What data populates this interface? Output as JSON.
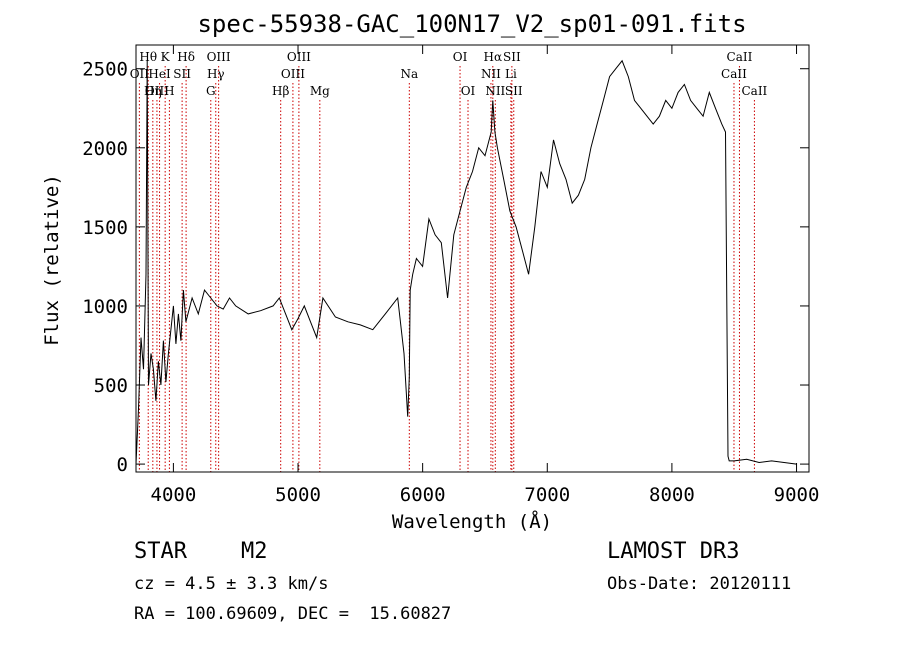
{
  "chart_data": {
    "type": "line",
    "title": "spec-55938-GAC_100N17_V2_sp01-091.fits",
    "xlabel": "Wavelength (Å)",
    "ylabel": "Flux (relative)",
    "xlim": [
      3700,
      9100
    ],
    "ylim": [
      -50,
      2650
    ],
    "xticks": [
      4000,
      5000,
      6000,
      7000,
      8000,
      9000
    ],
    "yticks": [
      0,
      500,
      1000,
      1500,
      2000,
      2500
    ],
    "series": [
      {
        "name": "flux",
        "x": [
          3700,
          3720,
          3740,
          3760,
          3780,
          3790,
          3800,
          3820,
          3840,
          3860,
          3880,
          3900,
          3920,
          3940,
          3960,
          3980,
          4000,
          4020,
          4040,
          4060,
          4080,
          4100,
          4150,
          4200,
          4250,
          4300,
          4350,
          4400,
          4450,
          4500,
          4600,
          4700,
          4800,
          4850,
          4900,
          4950,
          5000,
          5050,
          5100,
          5150,
          5200,
          5300,
          5400,
          5500,
          5600,
          5700,
          5800,
          5850,
          5880,
          5893,
          5900,
          5920,
          5950,
          6000,
          6050,
          6100,
          6150,
          6200,
          6250,
          6300,
          6350,
          6400,
          6450,
          6500,
          6550,
          6563,
          6580,
          6600,
          6650,
          6700,
          6750,
          6800,
          6850,
          6900,
          6950,
          7000,
          7050,
          7100,
          7150,
          7200,
          7250,
          7300,
          7350,
          7400,
          7450,
          7500,
          7550,
          7600,
          7650,
          7700,
          7750,
          7800,
          7850,
          7900,
          7950,
          8000,
          8050,
          8100,
          8150,
          8200,
          8250,
          8300,
          8350,
          8400,
          8430,
          8440,
          8450,
          8460,
          8500,
          8600,
          8700,
          8800,
          8900,
          9000
        ],
        "values": [
          0,
          350,
          800,
          600,
          1200,
          2550,
          500,
          700,
          600,
          400,
          650,
          500,
          780,
          520,
          700,
          850,
          1000,
          760,
          950,
          780,
          1100,
          900,
          1050,
          950,
          1100,
          1050,
          1000,
          980,
          1050,
          1000,
          950,
          970,
          1000,
          1050,
          950,
          850,
          920,
          1000,
          900,
          800,
          1050,
          930,
          900,
          880,
          850,
          950,
          1050,
          700,
          300,
          550,
          1100,
          1200,
          1300,
          1250,
          1550,
          1450,
          1400,
          1050,
          1450,
          1600,
          1750,
          1850,
          2000,
          1950,
          2100,
          2300,
          2100,
          2000,
          1800,
          1600,
          1500,
          1350,
          1200,
          1500,
          1850,
          1750,
          2050,
          1900,
          1800,
          1650,
          1700,
          1800,
          2000,
          2150,
          2300,
          2450,
          2500,
          2550,
          2450,
          2300,
          2250,
          2200,
          2150,
          2200,
          2300,
          2250,
          2350,
          2400,
          2300,
          2250,
          2200,
          2350,
          2250,
          2150,
          2100,
          1100,
          50,
          20,
          20,
          30,
          10,
          20,
          10,
          0
        ]
      }
    ],
    "line_markers": [
      {
        "label": "Hθ",
        "x": 3798,
        "row": 1
      },
      {
        "label": "OII",
        "x": 3727,
        "row": 2
      },
      {
        "label": "OIII",
        "x": 3868,
        "row": 3
      },
      {
        "label": "K",
        "x": 3934,
        "row": 1
      },
      {
        "label": "HeI",
        "x": 3889,
        "row": 2
      },
      {
        "label": "Hη",
        "x": 3835,
        "row": 3
      },
      {
        "label": "H",
        "x": 3968,
        "row": 3
      },
      {
        "label": "Hδ",
        "x": 4102,
        "row": 1
      },
      {
        "label": "SII",
        "x": 4070,
        "row": 2
      },
      {
        "label": "OIII",
        "x": 4363,
        "row": 1
      },
      {
        "label": "Hγ",
        "x": 4340,
        "row": 2
      },
      {
        "label": "G",
        "x": 4300,
        "row": 3
      },
      {
        "label": "Hβ",
        "x": 4861,
        "row": 3
      },
      {
        "label": "OIII",
        "x": 5007,
        "row": 1
      },
      {
        "label": "OIII",
        "x": 4959,
        "row": 2
      },
      {
        "label": "Mg",
        "x": 5175,
        "row": 3
      },
      {
        "label": "Na",
        "x": 5893,
        "row": 2
      },
      {
        "label": "OI",
        "x": 6300,
        "row": 1
      },
      {
        "label": "OI",
        "x": 6364,
        "row": 3
      },
      {
        "label": "Hα",
        "x": 6563,
        "row": 1
      },
      {
        "label": "SII",
        "x": 6716,
        "row": 1
      },
      {
        "label": "NII",
        "x": 6548,
        "row": 2
      },
      {
        "label": "Li",
        "x": 6708,
        "row": 2
      },
      {
        "label": "NII",
        "x": 6583,
        "row": 3
      },
      {
        "label": "SII",
        "x": 6731,
        "row": 3
      },
      {
        "label": "CaII",
        "x": 8542,
        "row": 1
      },
      {
        "label": "CaII",
        "x": 8498,
        "row": 2
      },
      {
        "label": "CaII",
        "x": 8662,
        "row": 3
      }
    ],
    "marker_color": "#cc0000"
  },
  "info": {
    "object_class": "STAR",
    "subclass": "M2",
    "survey": "LAMOST DR3",
    "cz": "cz = 4.5 ± 3.3 km/s",
    "obs_date": "Obs-Date: 20120111",
    "coords": "RA = 100.69609, DEC =  15.60827"
  }
}
